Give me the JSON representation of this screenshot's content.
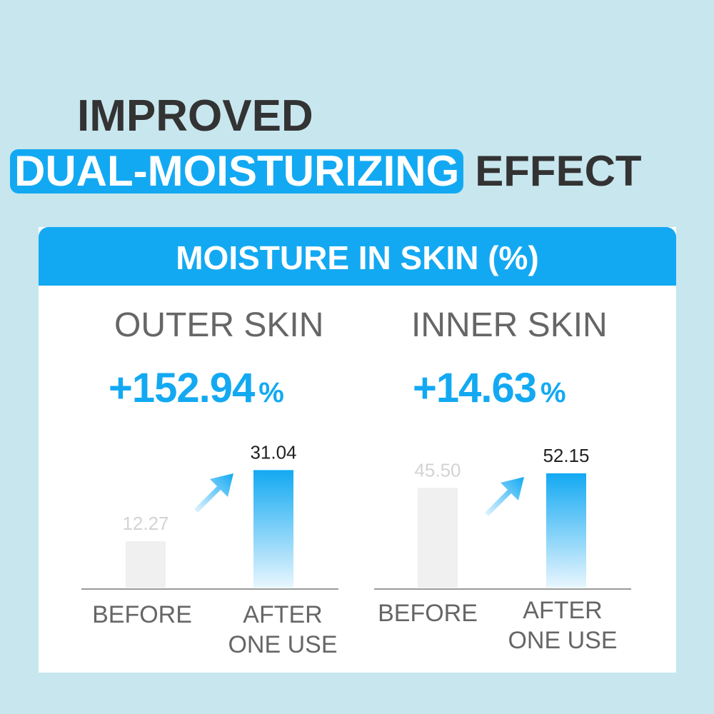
{
  "headline": {
    "line1": "IMPROVED",
    "highlight": "DUAL-MOISTURIZING",
    "rest": "EFFECT"
  },
  "colors": {
    "accent": "#13a9f2",
    "background": "#c8e6ee",
    "before_bar": "#f0f0f0"
  },
  "card": {
    "title": "MOISTURE IN SKIN (%)"
  },
  "panels": [
    {
      "title": "OUTER SKIN",
      "increase_value": "+152.94",
      "increase_unit": "%"
    },
    {
      "title": "INNER SKIN",
      "increase_value": "+14.63",
      "increase_unit": "%"
    }
  ],
  "chart_data": [
    {
      "type": "bar",
      "title": "OUTER SKIN",
      "categories": [
        "BEFORE",
        "AFTER\nONE USE"
      ],
      "values": [
        12.27,
        31.04
      ],
      "value_labels": [
        "12.27",
        "31.04"
      ],
      "ylim": [
        0,
        33
      ],
      "grid": false
    },
    {
      "type": "bar",
      "title": "INNER SKIN",
      "categories": [
        "BEFORE",
        "AFTER\nONE USE"
      ],
      "values": [
        45.5,
        52.15
      ],
      "value_labels": [
        "45.50",
        "52.15"
      ],
      "ylim": [
        0,
        57
      ],
      "grid": false
    }
  ]
}
